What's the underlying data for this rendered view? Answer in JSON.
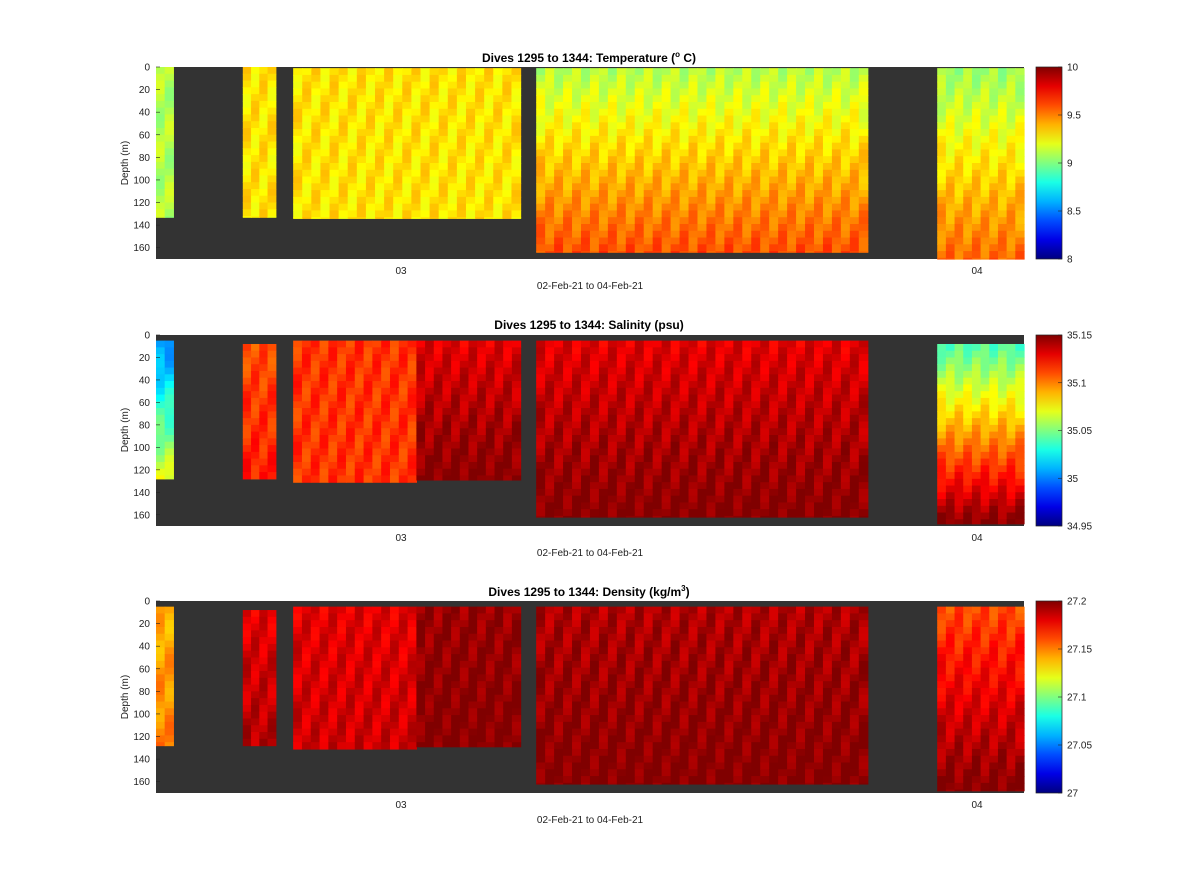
{
  "chart_data": [
    {
      "type": "heatmap",
      "title_prefix": "Dives 1295 to 1344: Temperature (",
      "title_sup": "o",
      "title_suffix": " C)",
      "xlabel": "02-Feb-21 to 04-Feb-21",
      "ylabel": "Depth (m)",
      "x_ticks": [
        "03",
        "04"
      ],
      "y_ticks": [
        "0",
        "20",
        "40",
        "60",
        "80",
        "100",
        "120",
        "140",
        "160"
      ],
      "ylim": [
        0,
        170
      ],
      "clim": [
        8,
        10
      ],
      "colorbar_ticks": [
        "8",
        "8.5",
        "9",
        "9.5",
        "10"
      ],
      "colormap": "jet",
      "columns": [
        {
          "x": [
            0.0,
            0.02
          ],
          "top": 0,
          "bottom": 133,
          "surface": 9.1,
          "deep": 9.1
        },
        {
          "x": [
            0.1,
            0.138
          ],
          "top": 0,
          "bottom": 133,
          "surface": 9.3,
          "deep": 9.3
        },
        {
          "x": [
            0.158,
            0.42
          ],
          "top": 1,
          "bottom": 134,
          "surface": 9.3,
          "deep": 9.3
        },
        {
          "x": [
            0.438,
            0.82
          ],
          "top": 1,
          "bottom": 164,
          "surface": 9.1,
          "deep": 9.6
        },
        {
          "x": [
            0.9,
            1.0
          ],
          "top": 1,
          "bottom": 170,
          "surface": 9.05,
          "deep": 9.55
        }
      ]
    },
    {
      "type": "heatmap",
      "title_prefix": "Dives 1295 to 1344: Salinity (psu)",
      "title_sup": "",
      "title_suffix": "",
      "xlabel": "02-Feb-21 to 04-Feb-21",
      "ylabel": "Depth (m)",
      "x_ticks": [
        "03",
        "04"
      ],
      "y_ticks": [
        "0",
        "20",
        "40",
        "60",
        "80",
        "100",
        "120",
        "140",
        "160"
      ],
      "ylim": [
        0,
        170
      ],
      "clim": [
        34.95,
        35.15
      ],
      "colorbar_ticks": [
        "34.95",
        "35",
        "35.05",
        "35.1",
        "35.15"
      ],
      "colormap": "jet",
      "columns": [
        {
          "x": [
            0.0,
            0.02
          ],
          "top": 5,
          "bottom": 128,
          "surface": 35.0,
          "deep": 35.07
        },
        {
          "x": [
            0.1,
            0.138
          ],
          "top": 8,
          "bottom": 128,
          "surface": 35.11,
          "deep": 35.12
        },
        {
          "x": [
            0.158,
            0.3
          ],
          "top": 5,
          "bottom": 131,
          "surface": 35.115,
          "deep": 35.115
        },
        {
          "x": [
            0.3,
            0.42
          ],
          "top": 5,
          "bottom": 129,
          "surface": 35.13,
          "deep": 35.15
        },
        {
          "x": [
            0.438,
            0.82
          ],
          "top": 5,
          "bottom": 162,
          "surface": 35.13,
          "deep": 35.15
        },
        {
          "x": [
            0.9,
            1.0
          ],
          "top": 8,
          "bottom": 168,
          "surface": 35.04,
          "deep": 35.15
        }
      ]
    },
    {
      "type": "heatmap",
      "title_prefix": "Dives 1295 to 1344: Density (kg/m",
      "title_sup": "3",
      "title_suffix": ")",
      "xlabel": "02-Feb-21 to 04-Feb-21",
      "ylabel": "Depth (m)",
      "x_ticks": [
        "03",
        "04"
      ],
      "y_ticks": [
        "0",
        "20",
        "40",
        "60",
        "80",
        "100",
        "120",
        "140",
        "160"
      ],
      "ylim": [
        0,
        170
      ],
      "clim": [
        27,
        27.2
      ],
      "colorbar_ticks": [
        "27",
        "27.05",
        "27.1",
        "27.15",
        "27.2"
      ],
      "colormap": "jet",
      "columns": [
        {
          "x": [
            0.0,
            0.02
          ],
          "top": 5,
          "bottom": 128,
          "surface": 27.14,
          "deep": 27.15
        },
        {
          "x": [
            0.1,
            0.138
          ],
          "top": 8,
          "bottom": 128,
          "surface": 27.18,
          "deep": 27.19
        },
        {
          "x": [
            0.158,
            0.3
          ],
          "top": 5,
          "bottom": 131,
          "surface": 27.18,
          "deep": 27.185
        },
        {
          "x": [
            0.3,
            0.42
          ],
          "top": 5,
          "bottom": 129,
          "surface": 27.195,
          "deep": 27.2
        },
        {
          "x": [
            0.438,
            0.82
          ],
          "top": 5,
          "bottom": 162,
          "surface": 27.19,
          "deep": 27.2
        },
        {
          "x": [
            0.9,
            1.0
          ],
          "top": 5,
          "bottom": 168,
          "surface": 27.16,
          "deep": 27.2
        }
      ]
    }
  ]
}
